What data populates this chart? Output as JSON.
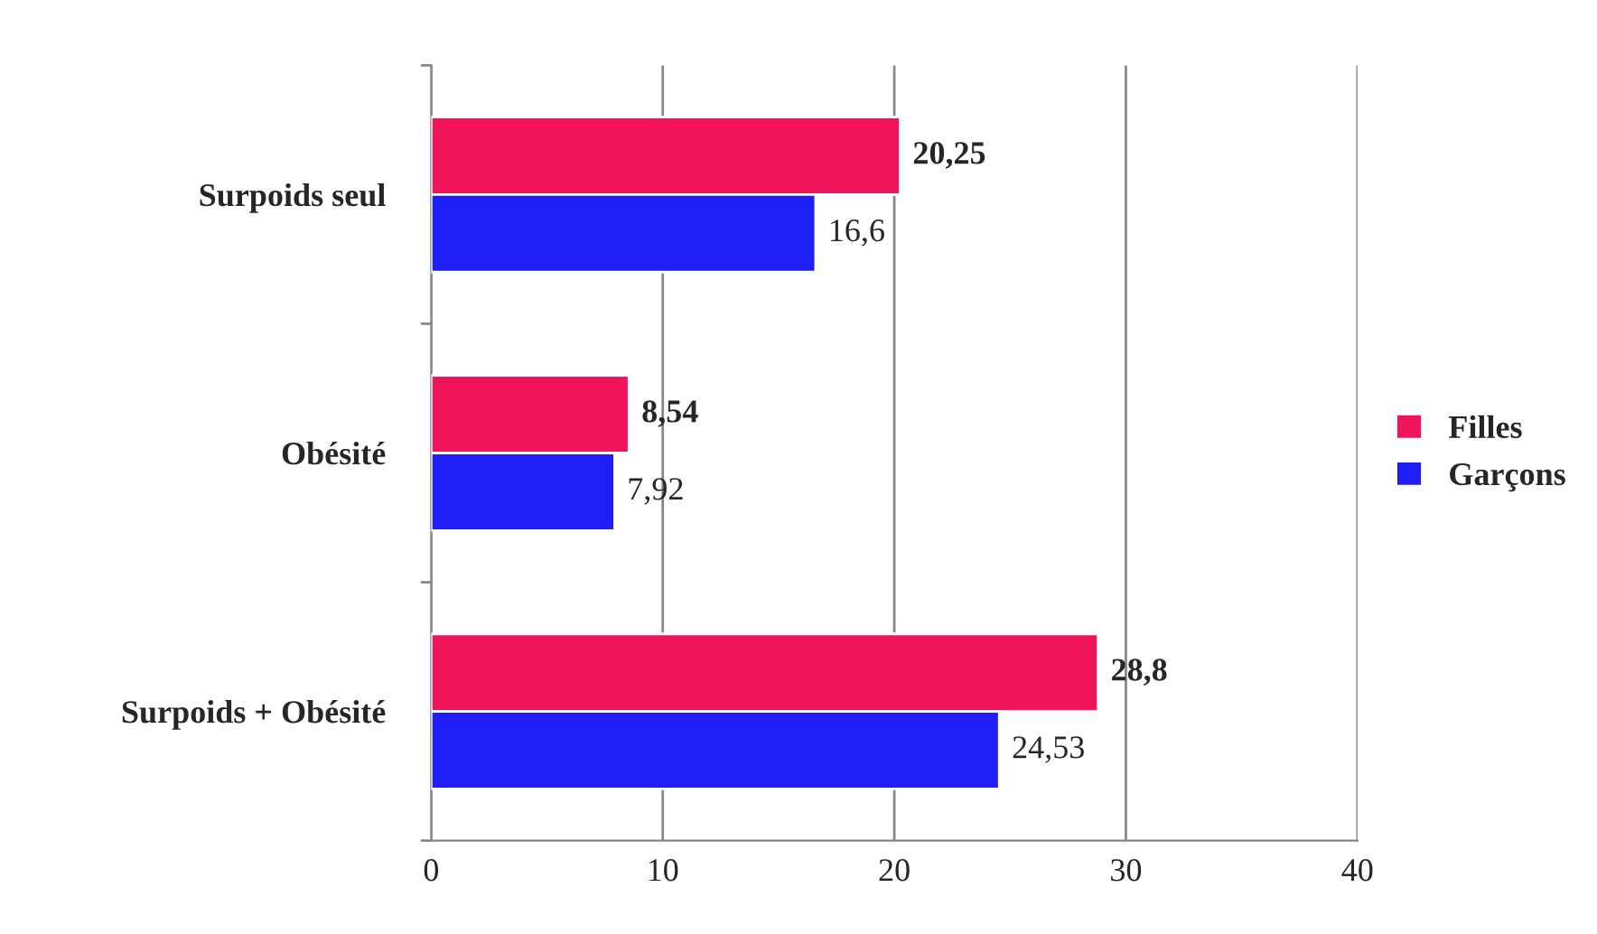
{
  "chart_data": {
    "type": "bar",
    "orientation": "horizontal",
    "categories": [
      "Surpoids seul",
      "Obésité",
      "Surpoids + Obésité"
    ],
    "series": [
      {
        "name": "Filles",
        "color": "#f0145a",
        "values": [
          20.25,
          8.54,
          28.8
        ],
        "value_labels": [
          "20,25",
          "8,54",
          "28,8"
        ]
      },
      {
        "name": "Garçons",
        "color": "#1e1ef5",
        "values": [
          16.6,
          7.92,
          24.53
        ],
        "value_labels": [
          "16,6",
          "7,92",
          "24,53"
        ]
      }
    ],
    "xlim": [
      0,
      40
    ],
    "xticks": [
      0,
      10,
      20,
      30,
      40
    ],
    "grid": "x",
    "legend": "right"
  }
}
